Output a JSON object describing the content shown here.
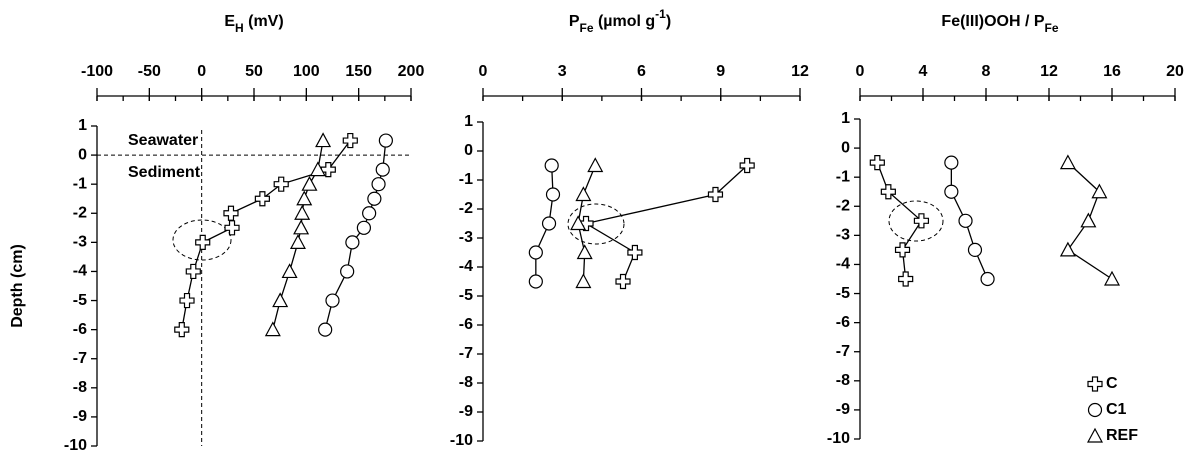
{
  "chart_data": [
    {
      "type": "scatter",
      "title": [
        {
          "text": "E"
        },
        {
          "text": "H",
          "sub": true
        },
        {
          "text": " (mV)"
        }
      ],
      "ylabel": "Depth (cm)",
      "xlim": [
        -100,
        200
      ],
      "xticks": [
        -100,
        -50,
        0,
        50,
        100,
        150,
        200
      ],
      "xminor_step": 25,
      "ylim": [
        -10,
        1
      ],
      "yticks": [
        1,
        0,
        -1,
        -2,
        -3,
        -4,
        -5,
        -6,
        -7,
        -8,
        -9,
        -10
      ],
      "vline": 0,
      "hline": 0,
      "annotations": [
        "Seawater",
        "Sediment"
      ],
      "series": [
        {
          "name": "C",
          "marker": "cross",
          "color": "#000000",
          "x": [
            142,
            121,
            76,
            58,
            28,
            29,
            1,
            -8,
            -14,
            -19
          ],
          "y": [
            0.5,
            -0.5,
            -1,
            -1.5,
            -2,
            -2.5,
            -3,
            -4,
            -5,
            -6
          ]
        },
        {
          "name": "C1",
          "marker": "circle",
          "color": "#000000",
          "x": [
            176,
            173,
            169,
            165,
            160,
            155,
            144,
            139,
            125,
            118
          ],
          "y": [
            0.5,
            -0.5,
            -1,
            -1.5,
            -2,
            -2.5,
            -3,
            -4,
            -5,
            -6
          ]
        },
        {
          "name": "REF",
          "marker": "triangle",
          "color": "#000000",
          "x": [
            116,
            111,
            103,
            98,
            96,
            95,
            92,
            84,
            75,
            68
          ],
          "y": [
            0.5,
            -0.5,
            -1,
            -1.5,
            -2,
            -2.5,
            -3,
            -4,
            -5,
            -6
          ]
        }
      ]
    },
    {
      "type": "scatter",
      "title": [
        {
          "text": "P"
        },
        {
          "text": "Fe",
          "sub": true
        },
        {
          "text": " (µmol g"
        },
        {
          "text": "-1",
          "sup": true
        },
        {
          "text": ")"
        }
      ],
      "xlim": [
        0,
        12
      ],
      "xticks": [
        0,
        3,
        6,
        9,
        12
      ],
      "xminor_step": 1.5,
      "ylim": [
        -10,
        1
      ],
      "yticks": [
        1,
        0,
        -1,
        -2,
        -3,
        -4,
        -5,
        -6,
        -7,
        -8,
        -9,
        -10
      ],
      "series": [
        {
          "name": "C",
          "marker": "cross",
          "color": "#000000",
          "x": [
            10.0,
            8.8,
            3.9,
            5.75,
            5.3
          ],
          "y": [
            -0.5,
            -1.5,
            -2.5,
            -3.5,
            -4.5
          ]
        },
        {
          "name": "C1",
          "marker": "circle",
          "color": "#000000",
          "x": [
            2.6,
            2.65,
            2.5,
            2.0,
            2.0
          ],
          "y": [
            -0.5,
            -1.5,
            -2.5,
            -3.5,
            -4.5
          ]
        },
        {
          "name": "REF",
          "marker": "triangle",
          "color": "#000000",
          "x": [
            4.25,
            3.8,
            3.6,
            3.85,
            3.8
          ],
          "y": [
            -0.5,
            -1.5,
            -2.5,
            -3.5,
            -4.5
          ]
        }
      ]
    },
    {
      "type": "scatter",
      "title": [
        {
          "text": "Fe(III)OOH / P"
        },
        {
          "text": "Fe",
          "sub": true
        }
      ],
      "xlim": [
        0,
        20
      ],
      "xticks": [
        0,
        4,
        8,
        12,
        16,
        20
      ],
      "xminor_step": 2,
      "ylim": [
        -10,
        1
      ],
      "yticks": [
        1,
        0,
        -1,
        -2,
        -3,
        -4,
        -5,
        -6,
        -7,
        -8,
        -9,
        -10
      ],
      "legend": "lower right",
      "series": [
        {
          "name": "C",
          "marker": "cross",
          "color": "#000000",
          "x": [
            1.1,
            1.8,
            3.9,
            2.7,
            2.9
          ],
          "y": [
            -0.5,
            -1.5,
            -2.5,
            -3.5,
            -4.5
          ]
        },
        {
          "name": "C1",
          "marker": "circle",
          "color": "#000000",
          "x": [
            5.8,
            5.8,
            6.7,
            7.3,
            8.1
          ],
          "y": [
            -0.5,
            -1.5,
            -2.5,
            -3.5,
            -4.5
          ]
        },
        {
          "name": "REF",
          "marker": "triangle",
          "color": "#000000",
          "x": [
            13.2,
            15.2,
            14.5,
            13.2,
            16.0
          ],
          "y": [
            -0.5,
            -1.5,
            -2.5,
            -3.5,
            -4.5
          ]
        }
      ]
    }
  ]
}
